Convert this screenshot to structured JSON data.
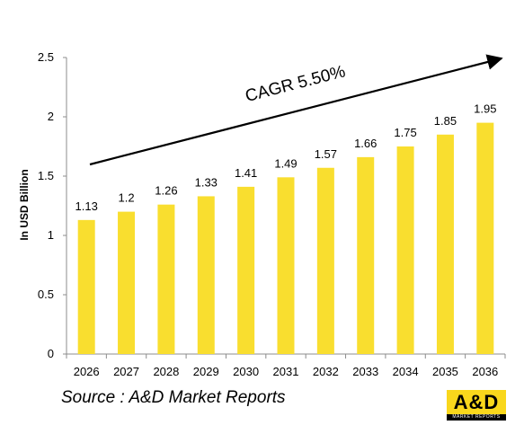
{
  "chart_data": {
    "type": "bar",
    "title": "",
    "xlabel": "",
    "ylabel": "In USD Billion",
    "categories": [
      "2026",
      "2027",
      "2028",
      "2029",
      "2030",
      "2031",
      "2032",
      "2033",
      "2034",
      "2035",
      "2036"
    ],
    "values": [
      1.13,
      1.2,
      1.26,
      1.33,
      1.41,
      1.49,
      1.57,
      1.66,
      1.75,
      1.85,
      1.95
    ],
    "data_labels": [
      "1.13",
      "1.2",
      "1.26",
      "1.33",
      "1.41",
      "1.49",
      "1.57",
      "1.66",
      "1.75",
      "1.85",
      "1.95"
    ],
    "ylim": [
      0,
      2.5
    ],
    "yticks": [
      "0",
      "0.5",
      "1",
      "1.5",
      "2",
      "2.5"
    ],
    "grid": false,
    "legend": "none",
    "bar_color": "#f9de2f",
    "annotation": "CAGR 5.50%"
  },
  "source_text": "Source : A&D Market Reports",
  "logo": {
    "main": "A&D",
    "sub": "MARKET REPORTS"
  }
}
